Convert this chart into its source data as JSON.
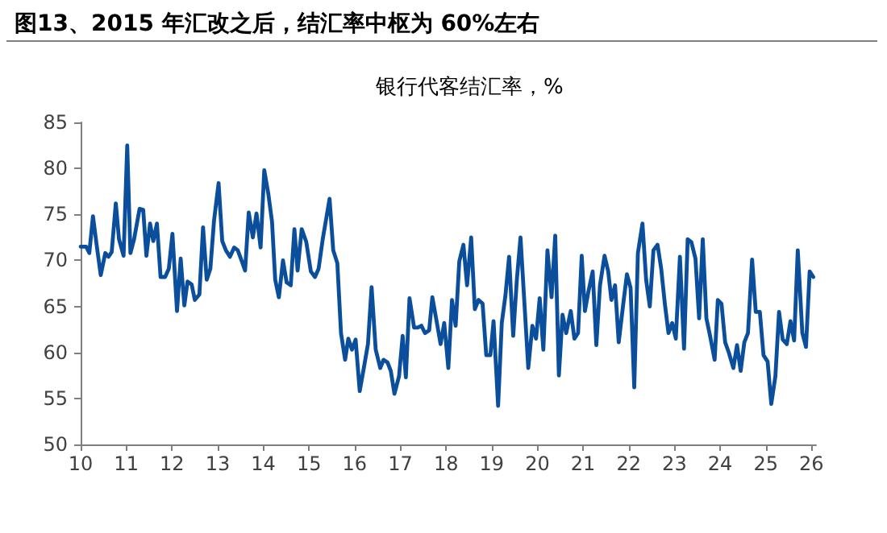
{
  "chart_data": {
    "type": "line",
    "title": "图13、2015 年汇改之后，结汇率中枢为 60%左右",
    "subtitle": "银行代客结汇率，%",
    "xlim": [
      2010,
      2026.1
    ],
    "xticks": [
      {
        "value": 2010,
        "label": "10"
      },
      {
        "value": 2011,
        "label": "11"
      },
      {
        "value": 2012,
        "label": "12"
      },
      {
        "value": 2013,
        "label": "13"
      },
      {
        "value": 2014,
        "label": "14"
      },
      {
        "value": 2015,
        "label": "15"
      },
      {
        "value": 2016,
        "label": "16"
      },
      {
        "value": 2017,
        "label": "17"
      },
      {
        "value": 2018,
        "label": "18"
      },
      {
        "value": 2019,
        "label": "19"
      },
      {
        "value": 2020,
        "label": "20"
      },
      {
        "value": 2021,
        "label": "21"
      },
      {
        "value": 2022,
        "label": "22"
      },
      {
        "value": 2023,
        "label": "23"
      },
      {
        "value": 2024,
        "label": "24"
      },
      {
        "value": 2025,
        "label": "25"
      },
      {
        "value": 2026,
        "label": "26"
      }
    ],
    "ylim": [
      50,
      85
    ],
    "yticks": [
      50,
      55,
      60,
      65,
      70,
      75,
      80,
      85
    ],
    "grid": false,
    "marker": "none",
    "line_style": "solid",
    "series": [
      {
        "color": "#0b4f9c",
        "x": [
          2010.0,
          2010.12,
          2010.19,
          2010.27,
          2010.35,
          2010.44,
          2010.54,
          2010.61,
          2010.68,
          2010.77,
          2010.84,
          2010.94,
          2011.02,
          2011.09,
          2011.17,
          2011.29,
          2011.37,
          2011.44,
          2011.52,
          2011.59,
          2011.67,
          2011.75,
          2011.85,
          2011.93,
          2012.01,
          2012.11,
          2012.19,
          2012.27,
          2012.34,
          2012.43,
          2012.5,
          2012.6,
          2012.68,
          2012.76,
          2012.84,
          2012.92,
          2013.02,
          2013.1,
          2013.18,
          2013.27,
          2013.36,
          2013.44,
          2013.53,
          2013.6,
          2013.68,
          2013.77,
          2013.85,
          2013.94,
          2014.02,
          2014.11,
          2014.19,
          2014.26,
          2014.34,
          2014.43,
          2014.51,
          2014.6,
          2014.68,
          2014.75,
          2014.84,
          2014.94,
          2015.04,
          2015.13,
          2015.21,
          2015.3,
          2015.45,
          2015.53,
          2015.62,
          2015.7,
          2015.79,
          2015.86,
          2015.94,
          2016.02,
          2016.11,
          2016.21,
          2016.29,
          2016.37,
          2016.46,
          2016.56,
          2016.63,
          2016.72,
          2016.79,
          2016.87,
          2016.97,
          2017.05,
          2017.12,
          2017.2,
          2017.3,
          2017.38,
          2017.46,
          2017.54,
          2017.63,
          2017.7,
          2017.8,
          2017.88,
          2017.96,
          2018.05,
          2018.13,
          2018.21,
          2018.29,
          2018.38,
          2018.46,
          2018.55,
          2018.63,
          2018.71,
          2018.8,
          2018.88,
          2018.97,
          2019.04,
          2019.14,
          2019.22,
          2019.3,
          2019.38,
          2019.47,
          2019.55,
          2019.63,
          2019.72,
          2019.8,
          2019.89,
          2019.97,
          2020.05,
          2020.13,
          2020.22,
          2020.31,
          2020.39,
          2020.47,
          2020.55,
          2020.63,
          2020.73,
          2020.81,
          2020.89,
          2020.97,
          2021.04,
          2021.12,
          2021.21,
          2021.29,
          2021.37,
          2021.47,
          2021.55,
          2021.62,
          2021.7,
          2021.78,
          2021.88,
          2021.96,
          2022.04,
          2022.12,
          2022.2,
          2022.3,
          2022.38,
          2022.46,
          2022.54,
          2022.63,
          2022.71,
          2022.79,
          2022.87,
          2022.95,
          2023.03,
          2023.12,
          2023.21,
          2023.29,
          2023.37,
          2023.46,
          2023.54,
          2023.62,
          2023.7,
          2023.78,
          2023.88,
          2023.95,
          2024.03,
          2024.11,
          2024.19,
          2024.29,
          2024.37,
          2024.45,
          2024.53,
          2024.61,
          2024.7,
          2024.78,
          2024.87,
          2024.95,
          2025.04,
          2025.12,
          2025.21,
          2025.29,
          2025.37,
          2025.46,
          2025.54,
          2025.62,
          2025.7,
          2025.8,
          2025.88,
          2025.96,
          2026.04
        ],
        "values": [
          71.5,
          71.5,
          70.8,
          74.8,
          71.7,
          68.4,
          70.8,
          70.4,
          70.9,
          76.2,
          72.3,
          70.5,
          82.5,
          70.8,
          72.3,
          75.6,
          75.5,
          70.5,
          74.0,
          72.1,
          74.0,
          68.2,
          68.2,
          69.1,
          72.9,
          64.5,
          70.2,
          65.1,
          67.7,
          67.4,
          65.7,
          66.3,
          73.6,
          67.9,
          69.1,
          74.3,
          78.4,
          72.1,
          71.1,
          70.4,
          71.4,
          71.1,
          69.9,
          68.9,
          75.2,
          72.5,
          75.1,
          71.4,
          79.8,
          77.2,
          74.2,
          67.9,
          66.0,
          70.0,
          67.6,
          67.3,
          73.4,
          68.9,
          73.4,
          72.0,
          68.8,
          68.2,
          69.1,
          72.3,
          76.7,
          71.1,
          69.7,
          62.1,
          59.2,
          61.5,
          60.3,
          61.4,
          55.8,
          58.6,
          60.9,
          67.1,
          60.3,
          58.3,
          59.2,
          58.9,
          58.0,
          55.5,
          57.4,
          61.8,
          57.3,
          65.9,
          62.7,
          62.7,
          62.9,
          62.1,
          62.4,
          66.0,
          63.2,
          60.9,
          63.2,
          58.3,
          65.7,
          62.9,
          69.9,
          71.7,
          67.3,
          72.5,
          64.7,
          65.7,
          65.3,
          59.7,
          59.7,
          63.4,
          54.2,
          63.2,
          66.2,
          70.4,
          61.8,
          67.9,
          72.5,
          65.0,
          58.3,
          62.9,
          61.5,
          65.9,
          60.3,
          71.1,
          66.0,
          72.7,
          57.5,
          64.1,
          62.1,
          64.5,
          61.5,
          62.1,
          70.5,
          64.5,
          66.7,
          68.8,
          60.8,
          67.3,
          70.5,
          68.8,
          65.7,
          67.3,
          61.1,
          65.3,
          68.5,
          67.0,
          56.2,
          70.8,
          74.0,
          67.9,
          65.0,
          71.1,
          71.7,
          69.1,
          65.3,
          62.1,
          63.2,
          61.5,
          70.4,
          60.4,
          72.3,
          72.0,
          70.2,
          63.7,
          72.3,
          63.7,
          61.8,
          59.2,
          65.7,
          65.3,
          61.1,
          60.0,
          58.3,
          60.8,
          58.0,
          61.1,
          62.1,
          70.1,
          64.4,
          64.4,
          59.7,
          59.0,
          54.4,
          57.4,
          64.4,
          61.4,
          60.9,
          63.4,
          61.3,
          71.1,
          62.1,
          60.6,
          68.8,
          68.2
        ]
      }
    ]
  }
}
